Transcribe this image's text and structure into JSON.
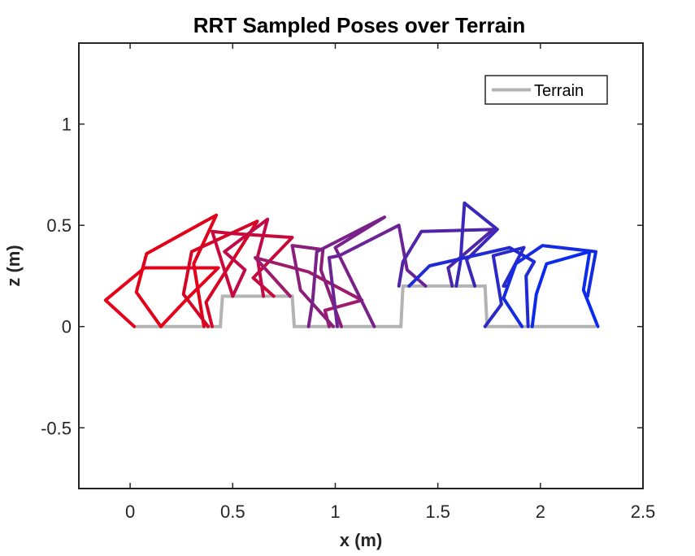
{
  "chart_data": {
    "type": "line",
    "title": "RRT Sampled Poses over Terrain",
    "xlabel": "x (m)",
    "ylabel": "z (m)",
    "xlim": [
      -0.25,
      2.5
    ],
    "ylim": [
      -0.8,
      1.4
    ],
    "xticks": [
      0,
      0.5,
      1,
      1.5,
      2,
      2.5
    ],
    "xtick_labels": [
      "0",
      "0.5",
      "1",
      "1.5",
      "2",
      "2.5"
    ],
    "yticks": [
      -0.5,
      0,
      0.5,
      1
    ],
    "ytick_labels": [
      "-0.5",
      "0",
      "0.5",
      "1"
    ],
    "grid": false,
    "legend": {
      "location": "top-right",
      "entries": [
        "Terrain"
      ]
    },
    "series": [
      {
        "name": "Terrain",
        "color": "#b3b3b3",
        "x": [
          0.02,
          0.44,
          0.45,
          0.79,
          0.8,
          1.32,
          1.33,
          1.73,
          1.74,
          2.27
        ],
        "y": [
          0,
          0,
          0.15,
          0.15,
          0,
          0,
          0.2,
          0.2,
          0,
          0
        ]
      }
    ],
    "poses": [
      {
        "color": "#e60019",
        "x": [
          0.02,
          -0.12,
          0.07,
          0.43,
          0.28,
          0.15
        ],
        "y": [
          0,
          0.13,
          0.29,
          0.29,
          0.14,
          0
        ]
      },
      {
        "color": "#e20119",
        "x": [
          0.15,
          0.03,
          0.08,
          0.42,
          0.31,
          0.36
        ],
        "y": [
          0,
          0.17,
          0.36,
          0.55,
          0.31,
          0
        ]
      },
      {
        "color": "#d60526",
        "x": [
          0.38,
          0.26,
          0.3,
          0.62,
          0.37,
          0.4
        ],
        "y": [
          0,
          0.16,
          0.37,
          0.52,
          0.12,
          0
        ]
      },
      {
        "color": "#c9093a",
        "x": [
          0.5,
          0.4,
          0.49,
          0.79,
          0.6,
          0.7
        ],
        "y": [
          0.15,
          0.47,
          0.46,
          0.44,
          0.24,
          0.15
        ]
      },
      {
        "color": "#c10b48",
        "x": [
          0.5,
          0.56,
          0.46,
          0.67,
          0.62,
          0.65
        ],
        "y": [
          0.15,
          0.28,
          0.37,
          0.53,
          0.34,
          0.15
        ]
      },
      {
        "color": "#9e1a6c",
        "x": [
          0.78,
          0.61,
          0.87,
          1.13,
          0.95,
          0.97
        ],
        "y": [
          0.15,
          0.34,
          0.27,
          0.13,
          0.08,
          0
        ]
      },
      {
        "color": "#8a1f7a",
        "x": [
          0.99,
          0.83,
          0.79,
          0.94,
          0.93,
          1.03
        ],
        "y": [
          0,
          0.18,
          0.4,
          0.38,
          0.28,
          0
        ]
      },
      {
        "color": "#7a2189",
        "x": [
          0.87,
          0.89,
          0.91,
          1.24,
          1.0,
          1.19
        ],
        "y": [
          0,
          0.13,
          0.37,
          0.54,
          0.39,
          0
        ]
      },
      {
        "color": "#6b2496",
        "x": [
          1.01,
          0.97,
          1.02,
          1.31,
          1.35,
          1.44
        ],
        "y": [
          0,
          0.34,
          0.35,
          0.5,
          0.28,
          0.2
        ]
      },
      {
        "color": "#5026a9",
        "x": [
          1.31,
          1.33,
          1.42,
          1.77,
          1.55,
          1.57
        ],
        "y": [
          0.2,
          0.32,
          0.47,
          0.48,
          0.29,
          0.2
        ]
      },
      {
        "color": "#3a28bb",
        "x": [
          1.59,
          1.61,
          1.63,
          1.79,
          1.64,
          1.68
        ],
        "y": [
          0.2,
          0.32,
          0.61,
          0.48,
          0.33,
          0.2
        ]
      },
      {
        "color": "#2a2ac8",
        "x": [
          1.73,
          1.81,
          1.77,
          1.92,
          1.82,
          1.84
        ],
        "y": [
          0,
          0.11,
          0.35,
          0.39,
          0.2,
          0.2
        ]
      },
      {
        "color": "#1f2ad5",
        "x": [
          1.94,
          1.93,
          1.97,
          1.85,
          1.46,
          1.36
        ],
        "y": [
          0,
          0.25,
          0.32,
          0.39,
          0.3,
          0.2
        ]
      },
      {
        "color": "#142be2",
        "x": [
          1.91,
          1.82,
          1.88,
          2.01,
          2.27,
          2.23
        ],
        "y": [
          0,
          0.14,
          0.31,
          0.4,
          0.37,
          0.15
        ]
      },
      {
        "color": "#0a2bee",
        "x": [
          2.28,
          2.21,
          2.24,
          2.03,
          1.98,
          1.96
        ],
        "y": [
          0,
          0.18,
          0.37,
          0.31,
          0.16,
          0
        ]
      }
    ]
  }
}
